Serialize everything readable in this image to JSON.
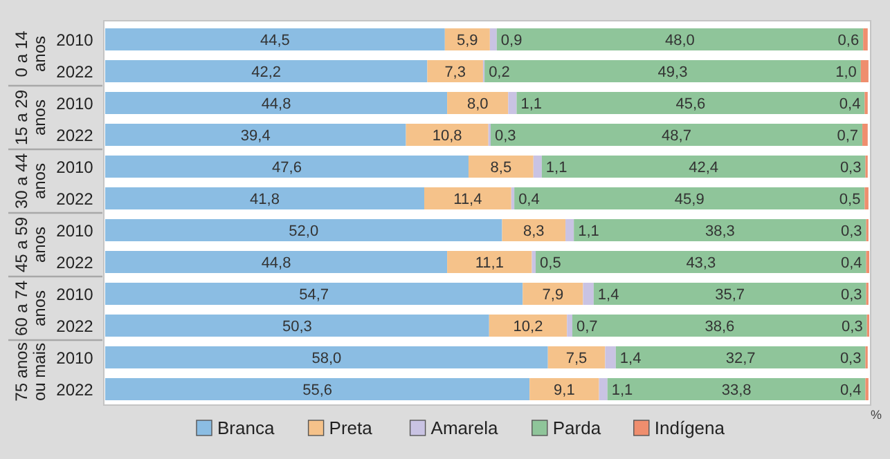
{
  "chart_data": {
    "type": "bar",
    "orientation": "horizontal",
    "stacked": true,
    "xlabel": "%",
    "legend": "bottom",
    "categories": [
      "2010",
      "2022",
      "2010",
      "2022",
      "2010",
      "2022",
      "2010",
      "2022",
      "2010",
      "2022",
      "2010",
      "2022"
    ],
    "annotations": [
      "0 a 14 anos",
      "15 a 29 anos",
      "30 a 44 anos",
      "45 a 59 anos",
      "60 a 74 anos",
      "75 anos ou mais"
    ],
    "xlim": [
      0,
      100.1
    ],
    "series": [
      {
        "name": "Branca",
        "color": "#8bbde3",
        "values": [
          44.5,
          42.2,
          44.8,
          39.4,
          47.6,
          41.8,
          52.0,
          44.8,
          54.7,
          50.3,
          58.0,
          55.6
        ],
        "value_labels": [
          "44,5",
          "42,2",
          "44,8",
          "39,4",
          "47,6",
          "41,8",
          "52,0",
          "44,8",
          "54,7",
          "50,3",
          "58,0",
          "55,6"
        ]
      },
      {
        "name": "Preta",
        "color": "#f5c28a",
        "values": [
          5.9,
          7.3,
          8.0,
          10.8,
          8.5,
          11.4,
          8.3,
          11.1,
          7.9,
          10.2,
          7.5,
          9.1
        ],
        "value_labels": [
          "5,9",
          "7,3",
          "8,0",
          "10,8",
          "8,5",
          "11,4",
          "8,3",
          "11,1",
          "7,9",
          "10,2",
          "7,5",
          "9,1"
        ]
      },
      {
        "name": "Amarela",
        "color": "#c9c3e3",
        "values": [
          0.9,
          0.2,
          1.1,
          0.3,
          1.1,
          0.4,
          1.1,
          0.5,
          1.4,
          0.7,
          1.4,
          1.1
        ],
        "value_labels": [
          "0,9",
          "0,2",
          "1,1",
          "0,3",
          "1,1",
          "0,4",
          "1,1",
          "0,5",
          "1,4",
          "0,7",
          "1,4",
          "1,1"
        ]
      },
      {
        "name": "Parda",
        "color": "#8fc59a",
        "values": [
          48.0,
          49.3,
          45.6,
          48.7,
          42.4,
          45.9,
          38.3,
          43.3,
          35.7,
          38.6,
          32.7,
          33.8
        ],
        "value_labels": [
          "48,0",
          "49,3",
          "45,6",
          "48,7",
          "42,4",
          "45,9",
          "38,3",
          "43,3",
          "35,7",
          "38,6",
          "32,7",
          "33,8"
        ]
      },
      {
        "name": "Indígena",
        "color": "#ef8e6e",
        "values": [
          0.6,
          1.0,
          0.4,
          0.7,
          0.3,
          0.5,
          0.3,
          0.4,
          0.3,
          0.3,
          0.3,
          0.4
        ],
        "value_labels": [
          "0,6",
          "1,0",
          "0,4",
          "0,7",
          "0,3",
          "0,5",
          "0,3",
          "0,4",
          "0,3",
          "0,3",
          "0,3",
          "0,4"
        ]
      }
    ]
  }
}
